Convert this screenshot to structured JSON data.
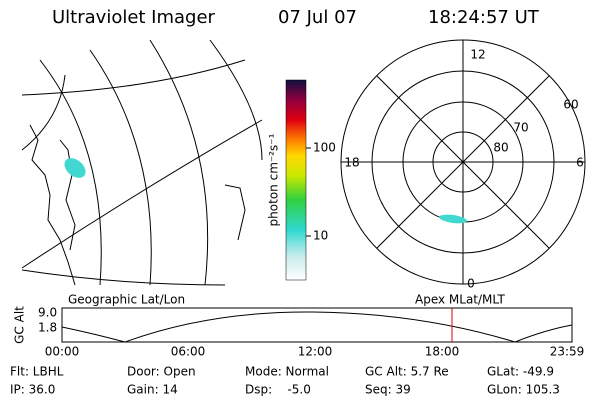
{
  "header": {
    "title": "Ultraviolet Imager",
    "date": "07 Jul 07",
    "time": "18:24:57 UT"
  },
  "colorbar": {
    "label": "photon cm⁻²s⁻¹",
    "ticks": [
      "100",
      "10"
    ]
  },
  "polar": {
    "mlt_labels": [
      "12",
      "18",
      "6",
      "0"
    ],
    "lat_labels": [
      "60",
      "70",
      "80"
    ]
  },
  "orbit": {
    "left_label": "Geographic Lat/Lon",
    "right_label": "Apex MLat/MLT",
    "axis_label": "GC Alt",
    "y_ticks": [
      "9.0",
      "1.8"
    ],
    "time_ticks": [
      "00:00",
      "06:00",
      "12:00",
      "18:00",
      "23:59"
    ]
  },
  "info": {
    "rows": [
      [
        "Flt: LBHL",
        "Door: Open",
        "Mode: Normal",
        "GC Alt: 5.7 Re",
        "GLat: -49.9"
      ],
      [
        "IP: 36.0",
        "Gain: 14",
        "Dsp:    -5.0",
        "Seq: 39",
        "GLon: 105.3"
      ]
    ]
  }
}
